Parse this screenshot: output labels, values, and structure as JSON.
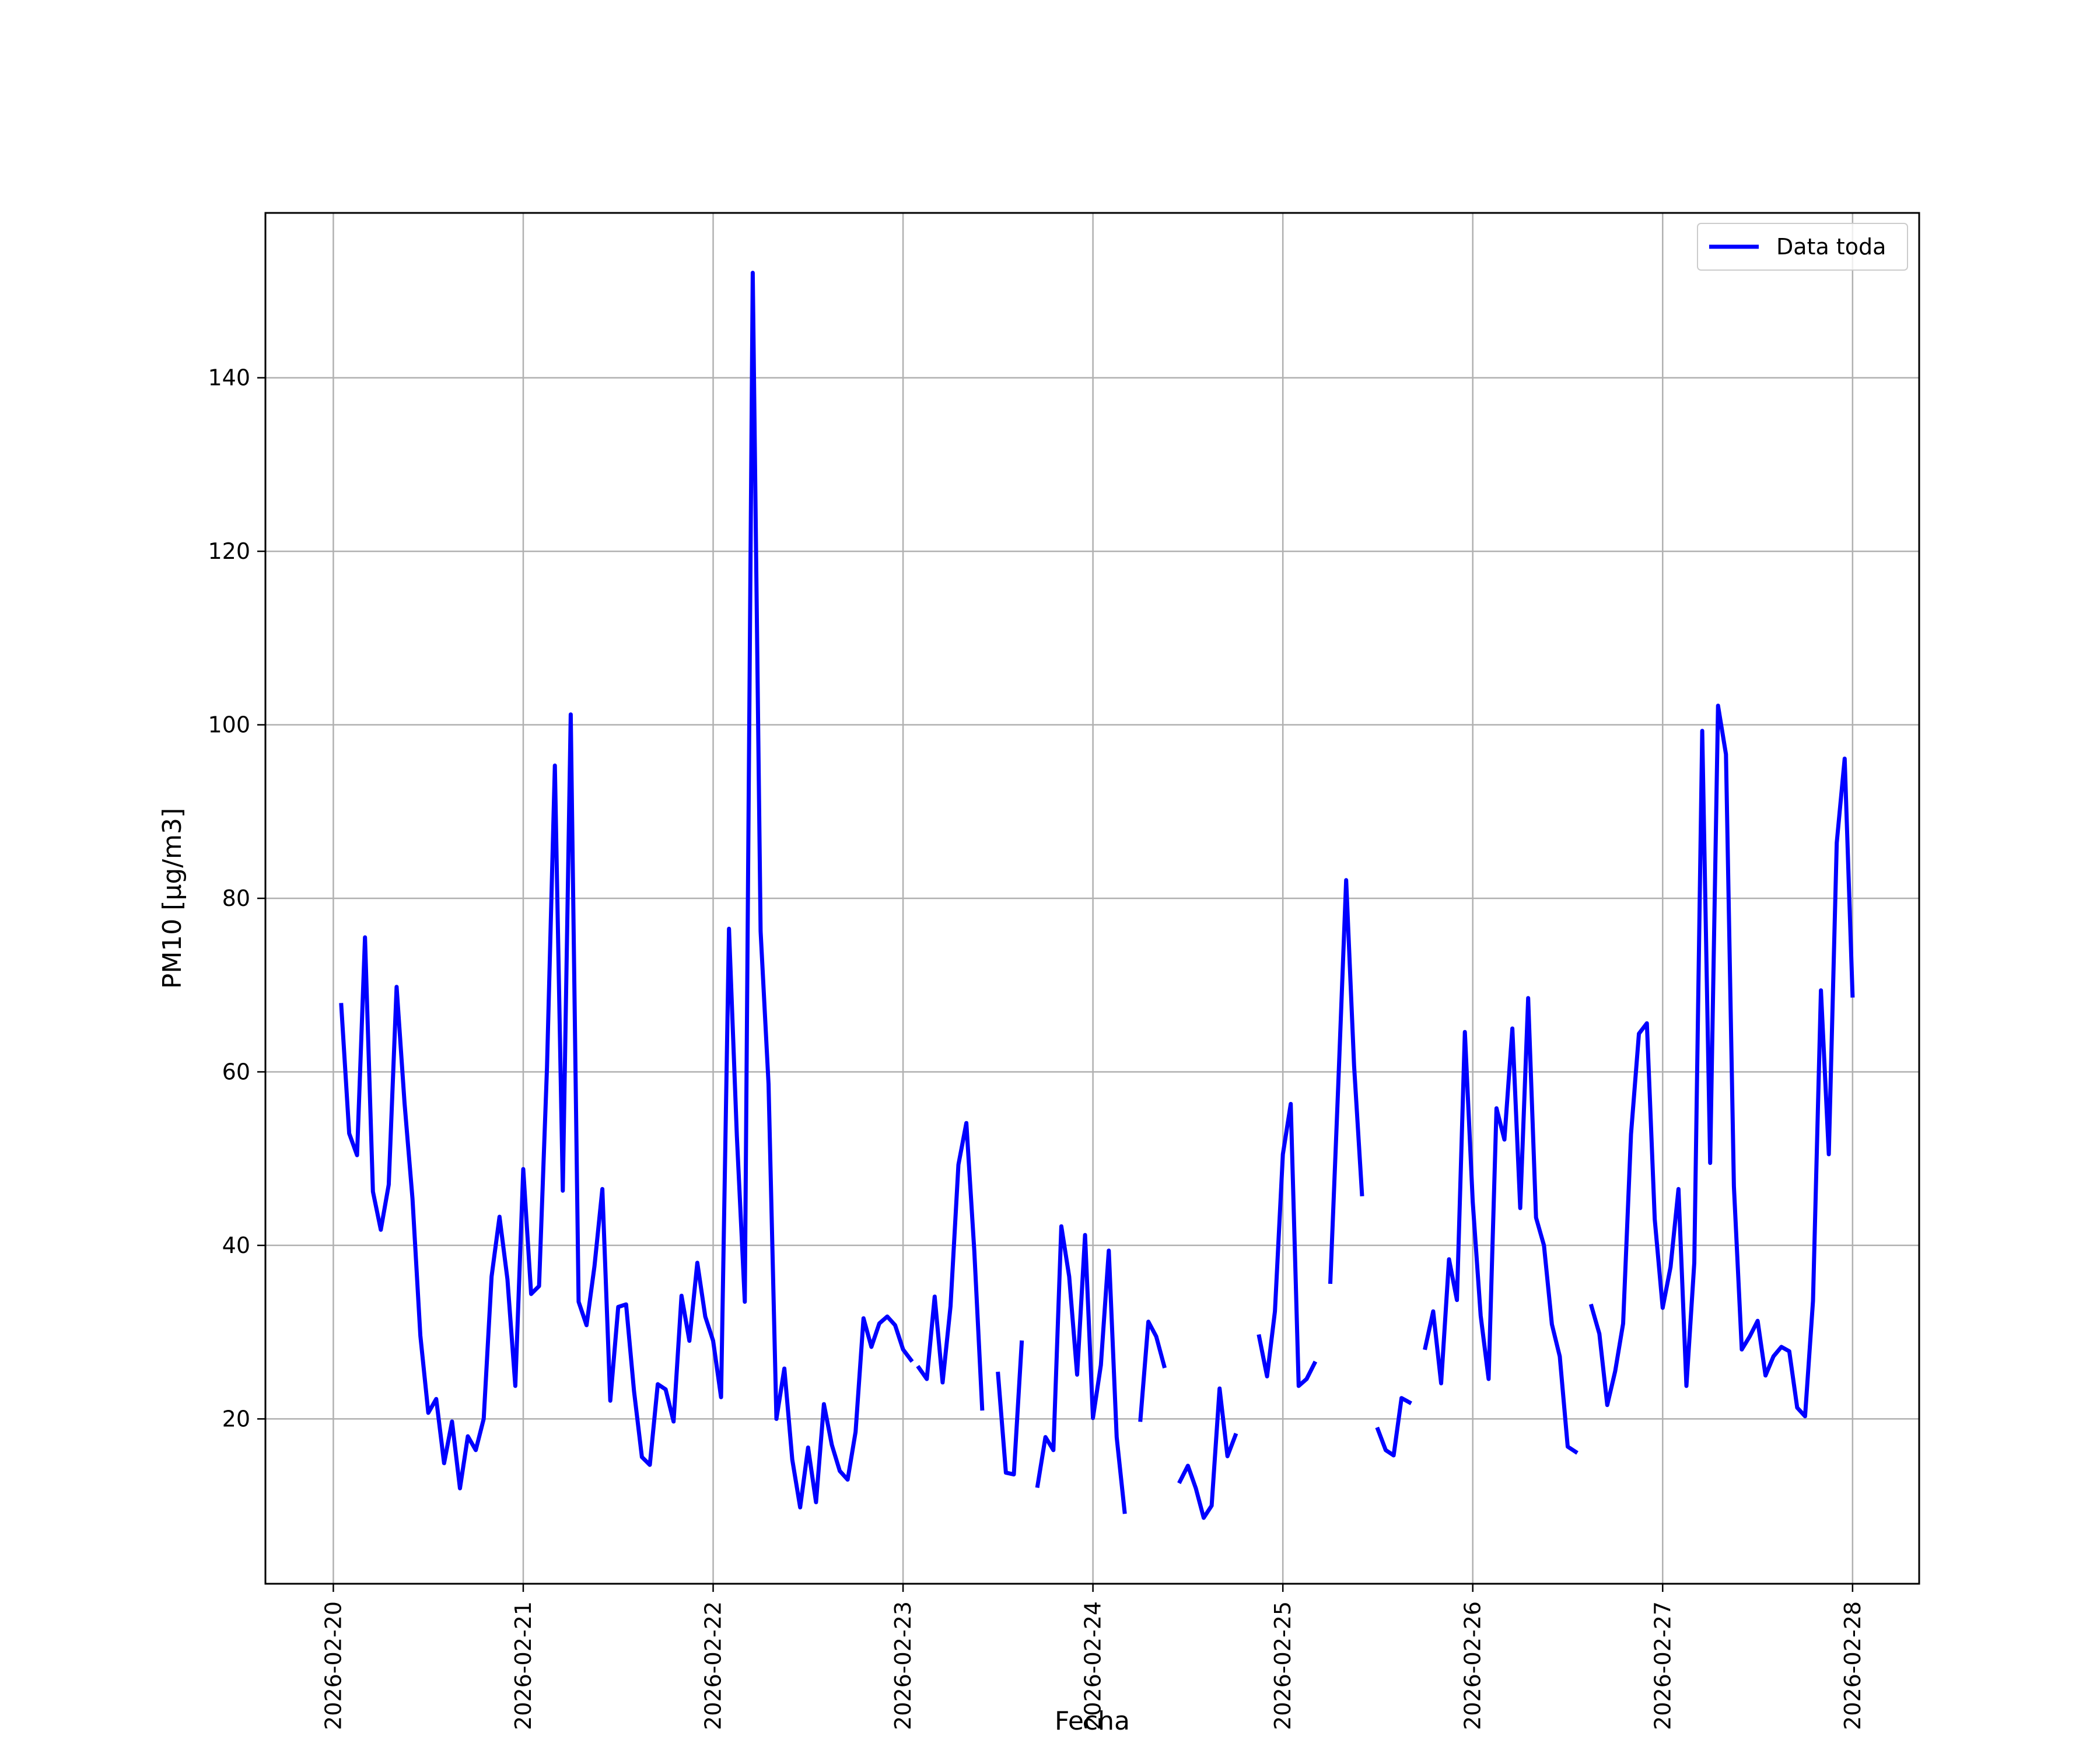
{
  "chart_data": {
    "type": "line",
    "xlabel": "Fecha",
    "ylabel": "PM10 [μg/m3]",
    "xlim": [
      "2026-02-19 15:25",
      "2026-02-28 08:25"
    ],
    "ylim": [
      1,
      159
    ],
    "grid": true,
    "legend_position": "top-right",
    "x_tick_labels": [
      "2026-02-20",
      "2026-02-21",
      "2026-02-22",
      "2026-02-23",
      "2026-02-24",
      "2026-02-25",
      "2026-02-26",
      "2026-02-27",
      "2026-02-28"
    ],
    "y_tick_labels": [
      "20",
      "40",
      "60",
      "80",
      "100",
      "120",
      "140"
    ],
    "series": [
      {
        "name": "Data toda",
        "color": "#0000ff",
        "segments": [
          {
            "x": [
              "2026-02-20 01:00",
              "2026-02-20 02:00",
              "2026-02-20 03:00",
              "2026-02-20 04:00",
              "2026-02-20 05:00",
              "2026-02-20 06:00",
              "2026-02-20 07:00",
              "2026-02-20 08:00",
              "2026-02-20 09:00",
              "2026-02-20 10:00",
              "2026-02-20 11:00",
              "2026-02-20 12:00",
              "2026-02-20 13:00",
              "2026-02-20 14:00",
              "2026-02-20 15:00",
              "2026-02-20 16:00",
              "2026-02-20 17:00",
              "2026-02-20 18:00",
              "2026-02-20 19:00",
              "2026-02-20 20:00",
              "2026-02-20 21:00",
              "2026-02-20 22:00",
              "2026-02-20 23:00",
              "2026-02-21 00:00",
              "2026-02-21 01:00",
              "2026-02-21 02:00",
              "2026-02-21 03:00",
              "2026-02-21 04:00",
              "2026-02-21 05:00",
              "2026-02-21 06:00",
              "2026-02-21 07:00",
              "2026-02-21 08:00",
              "2026-02-21 09:00",
              "2026-02-21 10:00",
              "2026-02-21 11:00",
              "2026-02-21 12:00",
              "2026-02-21 13:00",
              "2026-02-21 14:00",
              "2026-02-21 15:00",
              "2026-02-21 16:00",
              "2026-02-21 17:00",
              "2026-02-21 18:00",
              "2026-02-21 19:00",
              "2026-02-21 20:00",
              "2026-02-21 21:00",
              "2026-02-21 22:00",
              "2026-02-21 23:00",
              "2026-02-22 00:00",
              "2026-02-22 01:00",
              "2026-02-22 02:00",
              "2026-02-22 03:00",
              "2026-02-22 04:00",
              "2026-02-22 05:00",
              "2026-02-22 06:00",
              "2026-02-22 07:00",
              "2026-02-22 08:00",
              "2026-02-22 09:00",
              "2026-02-22 10:00",
              "2026-02-22 11:00",
              "2026-02-22 12:00",
              "2026-02-22 13:00",
              "2026-02-22 14:00",
              "2026-02-22 15:00",
              "2026-02-22 16:00",
              "2026-02-22 17:00",
              "2026-02-22 18:00",
              "2026-02-22 19:00",
              "2026-02-22 20:00",
              "2026-02-22 21:00",
              "2026-02-22 22:00",
              "2026-02-22 23:00",
              "2026-02-23 00:00",
              "2026-02-23 01:00"
            ],
            "y": [
              67.7,
              52.9,
              50.4,
              75.5,
              46.2,
              41.8,
              47.0,
              69.8,
              56.4,
              45.4,
              29.6,
              20.7,
              22.3,
              14.9,
              19.7,
              12.0,
              18.0,
              16.4,
              20.0,
              36.4,
              43.3,
              36.1,
              23.8,
              48.8,
              34.4,
              35.3,
              60.5,
              95.3,
              46.3,
              101.2,
              33.5,
              30.8,
              37.6,
              46.5,
              22.1,
              32.9,
              33.2,
              23.2,
              15.6,
              14.7,
              24.0,
              23.4,
              19.7,
              34.2,
              29.0,
              38.0,
              31.8,
              29.0,
              22.5,
              76.5,
              52.6,
              33.5,
              152.1,
              76.2,
              58.6,
              20.0,
              25.8,
              15.3,
              9.8,
              16.7,
              10.4,
              21.7,
              17.0,
              14.0,
              13.0,
              18.5,
              31.6,
              28.3,
              31.0,
              31.8,
              30.8,
              28.0,
              26.8
            ]
          },
          {
            "x": [
              "2026-02-23 02:00",
              "2026-02-23 03:00",
              "2026-02-23 04:00",
              "2026-02-23 05:00",
              "2026-02-23 06:00",
              "2026-02-23 07:00",
              "2026-02-23 08:00",
              "2026-02-23 09:00",
              "2026-02-23 10:00"
            ],
            "y": [
              25.9,
              24.6,
              34.1,
              24.2,
              33.0,
              49.3,
              54.1,
              39.4,
              21.2
            ]
          },
          {
            "x": [
              "2026-02-23 12:00",
              "2026-02-23 13:00",
              "2026-02-23 14:00",
              "2026-02-23 15:00"
            ],
            "y": [
              25.2,
              13.8,
              13.6,
              28.8
            ]
          },
          {
            "x": [
              "2026-02-23 17:00",
              "2026-02-23 18:00",
              "2026-02-23 19:00",
              "2026-02-23 20:00",
              "2026-02-23 21:00",
              "2026-02-23 22:00",
              "2026-02-23 23:00",
              "2026-02-24 00:00",
              "2026-02-24 01:00",
              "2026-02-24 02:00",
              "2026-02-24 03:00",
              "2026-02-24 04:00"
            ],
            "y": [
              12.3,
              17.9,
              16.4,
              42.2,
              36.4,
              25.1,
              41.2,
              20.1,
              26.2,
              39.4,
              17.9,
              9.3
            ]
          },
          {
            "x": [
              "2026-02-24 06:00",
              "2026-02-24 07:00",
              "2026-02-24 08:00",
              "2026-02-24 09:00"
            ],
            "y": [
              19.9,
              31.2,
              29.5,
              26.1
            ]
          },
          {
            "x": [
              "2026-02-24 11:00",
              "2026-02-24 12:00",
              "2026-02-24 13:00",
              "2026-02-24 14:00",
              "2026-02-24 15:00",
              "2026-02-24 16:00",
              "2026-02-24 17:00",
              "2026-02-24 18:00"
            ],
            "y": [
              12.8,
              14.6,
              12.0,
              8.6,
              10.0,
              23.5,
              15.7,
              18.1
            ]
          },
          {
            "x": [
              "2026-02-24 21:00",
              "2026-02-24 22:00",
              "2026-02-24 23:00",
              "2026-02-25 00:00",
              "2026-02-25 01:00",
              "2026-02-25 02:00",
              "2026-02-25 03:00",
              "2026-02-25 04:00"
            ],
            "y": [
              29.5,
              24.9,
              32.4,
              50.5,
              56.3,
              23.8,
              24.6,
              26.4
            ]
          },
          {
            "x": [
              "2026-02-25 06:00",
              "2026-02-25 07:00",
              "2026-02-25 08:00",
              "2026-02-25 09:00",
              "2026-02-25 10:00"
            ],
            "y": [
              35.8,
              58.4,
              82.1,
              60.7,
              45.9
            ]
          },
          {
            "x": [
              "2026-02-25 12:00",
              "2026-02-25 13:00",
              "2026-02-25 14:00",
              "2026-02-25 15:00",
              "2026-02-25 16:00"
            ],
            "y": [
              18.8,
              16.4,
              15.8,
              22.4,
              21.9
            ]
          },
          {
            "x": [
              "2026-02-25 18:00",
              "2026-02-25 19:00",
              "2026-02-25 20:00",
              "2026-02-25 21:00",
              "2026-02-25 22:00",
              "2026-02-25 23:00",
              "2026-02-26 00:00",
              "2026-02-26 01:00",
              "2026-02-26 02:00",
              "2026-02-26 03:00",
              "2026-02-26 04:00",
              "2026-02-26 05:00",
              "2026-02-26 06:00",
              "2026-02-26 07:00",
              "2026-02-26 08:00",
              "2026-02-26 09:00",
              "2026-02-26 10:00",
              "2026-02-26 11:00",
              "2026-02-26 12:00",
              "2026-02-26 13:00"
            ],
            "y": [
              28.2,
              32.4,
              24.1,
              38.4,
              33.7,
              64.6,
              45.0,
              31.9,
              24.6,
              55.8,
              52.2,
              65.0,
              44.3,
              68.5,
              43.2,
              40.0,
              30.9,
              27.2,
              16.8,
              16.2
            ]
          },
          {
            "x": [
              "2026-02-26 15:00",
              "2026-02-26 16:00",
              "2026-02-26 17:00",
              "2026-02-26 18:00",
              "2026-02-26 19:00",
              "2026-02-26 20:00",
              "2026-02-26 21:00",
              "2026-02-26 22:00",
              "2026-02-26 23:00",
              "2026-02-27 00:00",
              "2026-02-27 01:00",
              "2026-02-27 02:00",
              "2026-02-27 03:00",
              "2026-02-27 04:00",
              "2026-02-27 05:00",
              "2026-02-27 06:00",
              "2026-02-27 07:00",
              "2026-02-27 08:00",
              "2026-02-27 09:00",
              "2026-02-27 10:00",
              "2026-02-27 11:00",
              "2026-02-27 12:00",
              "2026-02-27 13:00",
              "2026-02-27 14:00",
              "2026-02-27 15:00",
              "2026-02-27 16:00",
              "2026-02-27 17:00",
              "2026-02-27 18:00",
              "2026-02-27 19:00",
              "2026-02-27 20:00",
              "2026-02-27 21:00",
              "2026-02-27 22:00",
              "2026-02-27 23:00",
              "2026-02-28 00:00"
            ],
            "y": [
              33.0,
              29.8,
              21.6,
              25.5,
              31.0,
              52.8,
              64.4,
              65.6,
              43.0,
              32.8,
              37.5,
              46.5,
              23.8,
              38.0,
              99.3,
              49.5,
              102.2,
              96.6,
              46.8,
              28.0,
              29.5,
              31.3,
              25.0,
              27.2,
              28.3,
              27.8,
              21.3,
              20.3,
              33.6,
              69.4,
              50.5,
              86.4,
              96.1,
              68.8
            ]
          }
        ]
      }
    ]
  }
}
